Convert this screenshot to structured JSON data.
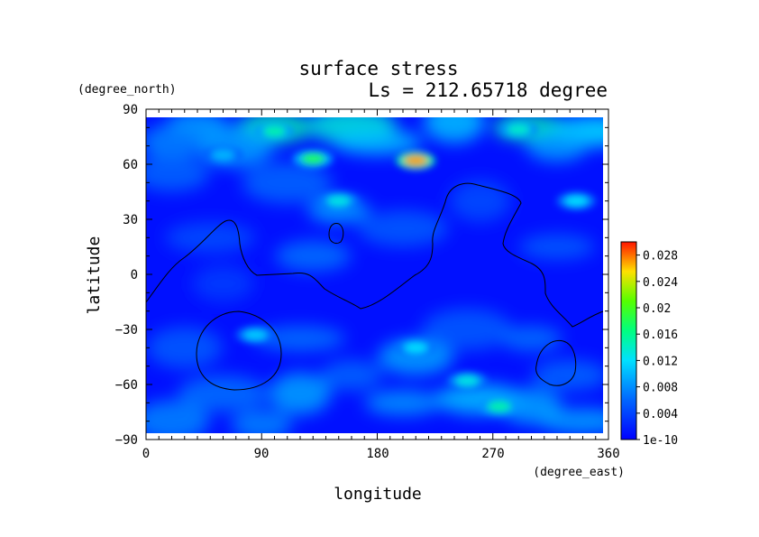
{
  "chart_data": {
    "type": "heatmap",
    "title": "surface stress",
    "subtitle": "Ls = 212.65718 degree",
    "xlabel": "longitude",
    "ylabel": "latitude",
    "x_units": "(degree_east)",
    "y_units": "(degree_north)",
    "xlim": [
      0,
      360
    ],
    "ylim": [
      -90,
      90
    ],
    "x_ticks": [
      "0",
      "90",
      "180",
      "270",
      "360"
    ],
    "y_ticks": [
      "90",
      "60",
      "30",
      "0",
      "−30",
      "−60",
      "−90"
    ],
    "x_tick_values": [
      0,
      90,
      180,
      270,
      360
    ],
    "y_tick_values": [
      90,
      60,
      30,
      0,
      -30,
      -60,
      -90
    ],
    "colorbar": {
      "min": 0,
      "max": 0.03,
      "labels": [
        "0.028",
        "0.024",
        "0.02",
        "0.016",
        "0.012",
        "0.008",
        "0.004",
        "1e-10"
      ],
      "label_values": [
        0.028,
        0.024,
        0.02,
        0.016,
        0.012,
        0.008,
        0.004,
        0
      ]
    },
    "colors": {
      "low": "#0000ff",
      "mid_low": "#0066ff",
      "mid": "#00e0ff",
      "mid_high": "#55ff00",
      "high": "#ffe000",
      "max": "#ff1500"
    },
    "features": [
      {
        "lon": 210,
        "lat": 62,
        "value": 0.027
      },
      {
        "lon": 130,
        "lat": 63,
        "value": 0.018
      },
      {
        "lon": 100,
        "lat": 78,
        "value": 0.015
      },
      {
        "lon": 290,
        "lat": 79,
        "value": 0.014
      },
      {
        "lon": 150,
        "lat": 40,
        "value": 0.013
      },
      {
        "lon": 335,
        "lat": 40,
        "value": 0.012
      },
      {
        "lon": 85,
        "lat": -33,
        "value": 0.011
      },
      {
        "lon": 210,
        "lat": -40,
        "value": 0.012
      },
      {
        "lon": 250,
        "lat": -58,
        "value": 0.013
      },
      {
        "lon": 275,
        "lat": -72,
        "value": 0.015
      },
      {
        "lon": 60,
        "lat": 65,
        "value": 0.01
      }
    ]
  }
}
